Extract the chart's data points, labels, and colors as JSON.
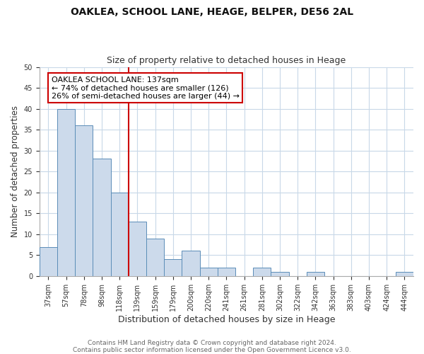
{
  "title1": "OAKLEA, SCHOOL LANE, HEAGE, BELPER, DE56 2AL",
  "title2": "Size of property relative to detached houses in Heage",
  "xlabel": "Distribution of detached houses by size in Heage",
  "ylabel": "Number of detached properties",
  "bin_labels": [
    "37sqm",
    "57sqm",
    "78sqm",
    "98sqm",
    "118sqm",
    "139sqm",
    "159sqm",
    "179sqm",
    "200sqm",
    "220sqm",
    "241sqm",
    "261sqm",
    "281sqm",
    "302sqm",
    "322sqm",
    "342sqm",
    "363sqm",
    "383sqm",
    "403sqm",
    "424sqm",
    "444sqm"
  ],
  "bar_heights": [
    7,
    40,
    36,
    28,
    20,
    13,
    9,
    4,
    6,
    2,
    2,
    0,
    2,
    1,
    0,
    1,
    0,
    0,
    0,
    0,
    1
  ],
  "bar_color": "#ccdaeb",
  "bar_edge_color": "#5b8db8",
  "vline_color": "#cc0000",
  "annotation_title": "OAKLEA SCHOOL LANE: 137sqm",
  "annotation_line1": "← 74% of detached houses are smaller (126)",
  "annotation_line2": "26% of semi-detached houses are larger (44) →",
  "annotation_box_color": "#ffffff",
  "annotation_box_edge": "#cc0000",
  "ylim": [
    0,
    50
  ],
  "yticks": [
    0,
    5,
    10,
    15,
    20,
    25,
    30,
    35,
    40,
    45,
    50
  ],
  "footer1": "Contains HM Land Registry data © Crown copyright and database right 2024.",
  "footer2": "Contains public sector information licensed under the Open Government Licence v3.0.",
  "bg_color": "#ffffff",
  "grid_color": "#c8d8e8"
}
